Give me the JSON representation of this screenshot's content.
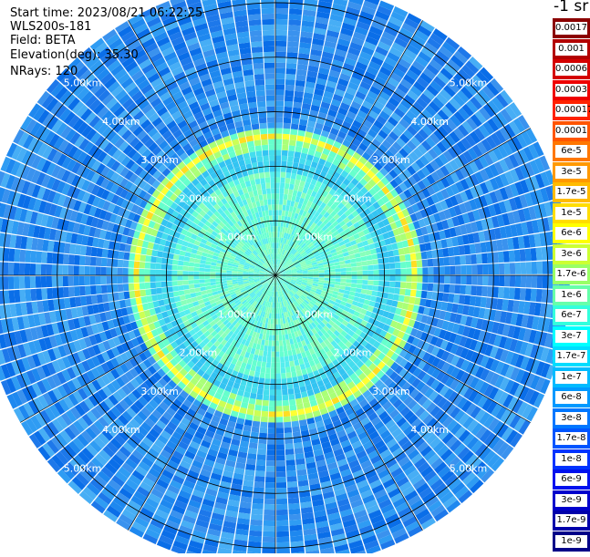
{
  "header": {
    "start_time": "Start time: 2023/08/21 06:22:25",
    "station": "WLS200s-181",
    "field": "Field: BETA",
    "elevation": "Elevation(deg): 35.30",
    "nrays": "NRays: 120"
  },
  "colorbar": {
    "unit": "-1 sr",
    "labels": [
      "0.0017",
      "0.001",
      "0.0006",
      "0.0003",
      "0.00017",
      "0.0001",
      "6e-5",
      "3e-5",
      "1.7e-5",
      "1e-5",
      "6e-6",
      "3e-6",
      "1.7e-6",
      "1e-6",
      "6e-7",
      "3e-7",
      "1.7e-7",
      "1e-7",
      "6e-8",
      "3e-8",
      "1.7e-8",
      "1e-8",
      "6e-9",
      "3e-9",
      "1.7e-9",
      "1e-9"
    ],
    "colors": [
      "#8b0000",
      "#b30000",
      "#d40000",
      "#ee0000",
      "#ff2200",
      "#ff5500",
      "#ff7700",
      "#ff9900",
      "#ffbb00",
      "#ffdd00",
      "#ffff00",
      "#ccff33",
      "#99ff66",
      "#66ffaa",
      "#33ffdd",
      "#00ffff",
      "#00ddff",
      "#00bbff",
      "#0099ff",
      "#0077ff",
      "#0055ff",
      "#0033ff",
      "#0011ee",
      "#0000cc",
      "#0000aa",
      "#000088"
    ]
  },
  "chart_data": {
    "type": "heatmap",
    "projection": "polar-ppi",
    "nrays": 120,
    "range_rings_km": [
      1,
      2,
      3,
      4,
      5
    ],
    "range_ring_labels": [
      "1.00km",
      "2.00km",
      "3.00km",
      "4.00km",
      "5.00km"
    ],
    "max_range_km": 5.4,
    "aerosol_layer_km": 2.55,
    "grid": true
  }
}
